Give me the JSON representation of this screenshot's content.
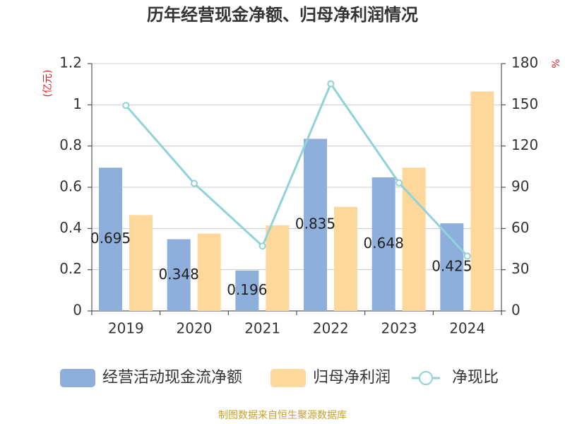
{
  "chart_data": {
    "type": "bar",
    "title": "历年经营现金净额、归母净利润情况",
    "y_label": "(亿元)",
    "y2_label": "%",
    "source": "制图数据来自恒生聚源数据库",
    "categories": [
      "2019",
      "2020",
      "2021",
      "2022",
      "2023",
      "2024"
    ],
    "series": [
      {
        "name": "经营活动现金流净额",
        "type": "bar",
        "color": "#8eaedb",
        "values": [
          0.695,
          0.348,
          0.196,
          0.835,
          0.648,
          0.425
        ],
        "show_labels": true
      },
      {
        "name": "归母净利润",
        "type": "bar",
        "color": "#fdd89a",
        "values": [
          0.465,
          0.375,
          0.415,
          0.505,
          0.695,
          1.065
        ]
      },
      {
        "name": "净现比",
        "type": "line",
        "axis": "y2",
        "color": "#8fd3d9",
        "values": [
          149.5,
          92.8,
          47.2,
          165.3,
          93.2,
          39.9
        ]
      }
    ],
    "ylim": [
      0,
      1.2
    ],
    "yticks": [
      0,
      0.2,
      0.4,
      0.6,
      0.8,
      1,
      1.2
    ],
    "y2lim": [
      0,
      180
    ],
    "y2ticks": [
      0,
      30,
      60,
      90,
      120,
      150,
      180
    ],
    "grid": true
  }
}
